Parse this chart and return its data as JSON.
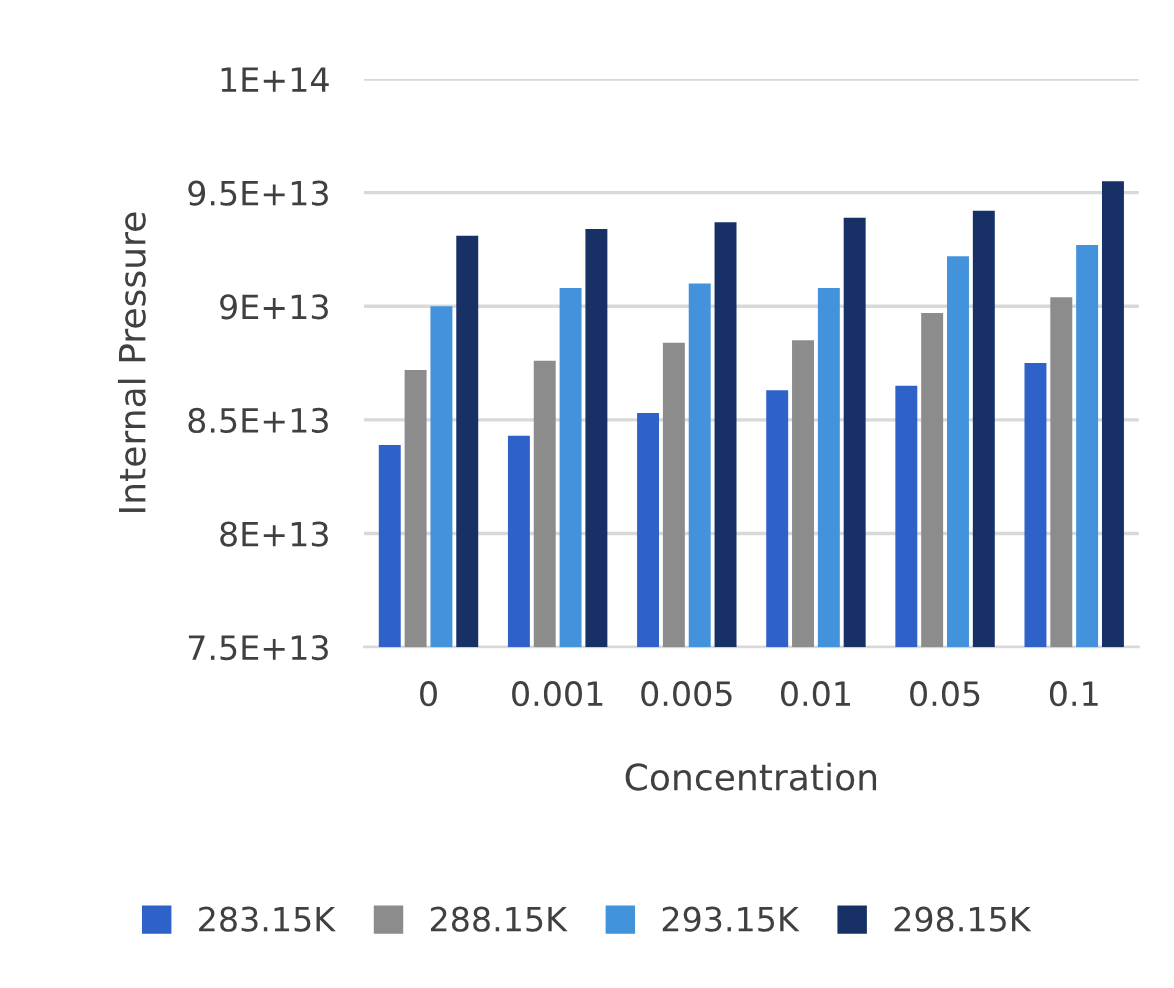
{
  "chart_data": {
    "type": "bar",
    "xlabel": "Concentration",
    "ylabel": "Internal Pressure",
    "categories": [
      "0",
      "0.001",
      "0.005",
      "0.01",
      "0.05",
      "0.1"
    ],
    "series": [
      {
        "name": "283.15K",
        "color": "#2e62c9",
        "values": [
          83900000000000.0,
          84300000000000.0,
          85300000000000.0,
          86300000000000.0,
          86500000000000.0,
          87500000000000.0
        ]
      },
      {
        "name": "288.15K",
        "color": "#8c8c8c",
        "values": [
          87200000000000.0,
          87600000000000.0,
          88400000000000.0,
          88500000000000.0,
          89700000000000.0,
          90400000000000.0
        ]
      },
      {
        "name": "293.15K",
        "color": "#4293db",
        "values": [
          90000000000000.0,
          90800000000000.0,
          91000000000000.0,
          90800000000000.0,
          92200000000000.0,
          92700000000000.0
        ]
      },
      {
        "name": "298.15K",
        "color": "#173066",
        "values": [
          93100000000000.0,
          93400000000000.0,
          93700000000000.0,
          93900000000000.0,
          94200000000000.0,
          95500000000000.0
        ]
      }
    ],
    "ylim": [
      75000000000000.0,
      100000000000000.0
    ],
    "yticks": [
      {
        "value": 75000000000000.0,
        "label": "7.5E+13"
      },
      {
        "value": 80000000000000.0,
        "label": "8E+13"
      },
      {
        "value": 85000000000000.0,
        "label": "8.5E+13"
      },
      {
        "value": 90000000000000.0,
        "label": "9E+13"
      },
      {
        "value": 95000000000000.0,
        "label": "9.5E+13"
      },
      {
        "value": 100000000000000.0,
        "label": "1E+14"
      }
    ],
    "grid": "y",
    "legend": "bottom"
  }
}
